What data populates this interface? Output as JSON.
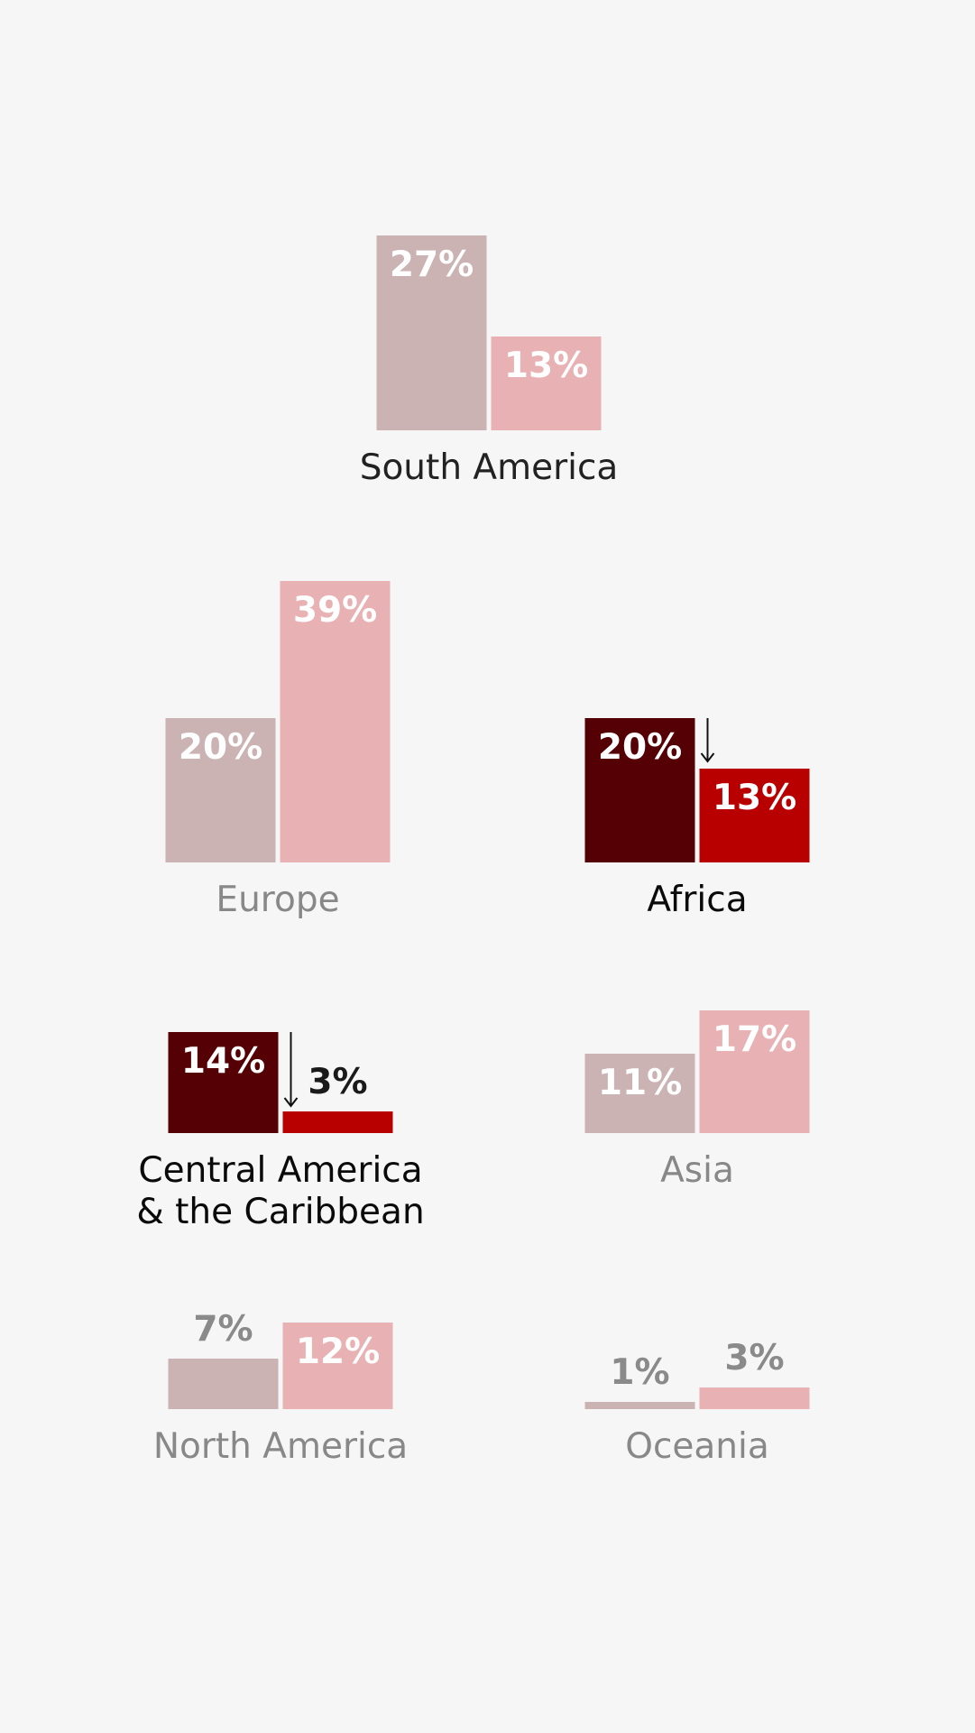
{
  "colors": {
    "background": "#f6f6f6",
    "prior_muted": "#cbb3b4",
    "recent_muted": "#e8b1b3",
    "prior_highlight": "#540004",
    "recent_highlight": "#b80000",
    "label_inside": "#ffffff",
    "label_outside_muted": "#8a8a8a",
    "label_outside_highlight": "#1a1a1a",
    "name_muted": "#888888",
    "name_default": "#222222",
    "name_highlight": "#0a0a0a"
  },
  "chart_data": [
    {
      "type": "bar",
      "region": "South America",
      "values": [
        27,
        13
      ],
      "value_labels": [
        "27%",
        "13%"
      ],
      "style": "default"
    },
    {
      "type": "bar",
      "region": "Europe",
      "values": [
        20,
        39
      ],
      "value_labels": [
        "20%",
        "39%"
      ],
      "style": "muted"
    },
    {
      "type": "bar",
      "region": "Africa",
      "values": [
        20,
        13
      ],
      "value_labels": [
        "20%",
        "13%"
      ],
      "style": "highlight",
      "decrease_arrow": true
    },
    {
      "type": "bar",
      "region": "Central America & the Caribbean",
      "region_lines": [
        "Central America",
        "& the Caribbean"
      ],
      "values": [
        14,
        3
      ],
      "value_labels": [
        "14%",
        "3%"
      ],
      "style": "highlight",
      "decrease_arrow": true
    },
    {
      "type": "bar",
      "region": "Asia",
      "values": [
        11,
        17
      ],
      "value_labels": [
        "11%",
        "17%"
      ],
      "style": "muted"
    },
    {
      "type": "bar",
      "region": "North America",
      "values": [
        7,
        12
      ],
      "value_labels": [
        "7%",
        "12%"
      ],
      "style": "muted"
    },
    {
      "type": "bar",
      "region": "Oceania",
      "values": [
        1,
        3
      ],
      "value_labels": [
        "1%",
        "3%"
      ],
      "style": "muted"
    }
  ]
}
